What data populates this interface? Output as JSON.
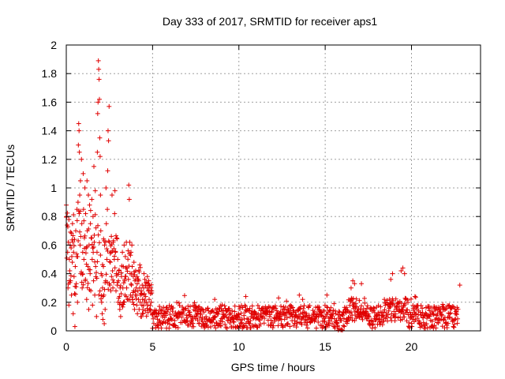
{
  "chart_data": {
    "type": "scatter",
    "title": "Day 333 of 2017, SRMTID for receiver aps1",
    "xlabel": "GPS time / hours",
    "ylabel": "SRMTID / TECUs",
    "xlim": [
      0,
      24
    ],
    "ylim": [
      0,
      2
    ],
    "xticks": [
      0,
      5,
      10,
      15,
      20
    ],
    "xtick_labels": [
      "0",
      "5",
      "10",
      "15",
      "20"
    ],
    "yticks": [
      0,
      0.2,
      0.4,
      0.6,
      0.8,
      1,
      1.2,
      1.4,
      1.6,
      1.8,
      2
    ],
    "ytick_labels": [
      "0",
      "0.2",
      "0.4",
      "0.6",
      "0.8",
      "1",
      "1.2",
      "1.4",
      "1.6",
      "1.8",
      "2"
    ],
    "grid": true,
    "marker": "plus",
    "color": "#e00000",
    "series": [
      {
        "name": "SRMTID",
        "points": [
          [
            0.0,
            0.88
          ],
          [
            0.02,
            0.8
          ],
          [
            0.05,
            0.74
          ],
          [
            0.08,
            0.55
          ],
          [
            0.1,
            0.3
          ],
          [
            0.12,
            0.62
          ],
          [
            0.15,
            0.18
          ],
          [
            0.18,
            0.5
          ],
          [
            0.2,
            0.42
          ],
          [
            0.22,
            0.6
          ],
          [
            0.25,
            0.35
          ],
          [
            0.28,
            0.58
          ],
          [
            0.3,
            0.25
          ],
          [
            0.32,
            0.52
          ],
          [
            0.35,
            0.48
          ],
          [
            0.38,
            0.62
          ],
          [
            0.4,
            0.12
          ],
          [
            0.42,
            0.55
          ],
          [
            0.45,
            0.38
          ],
          [
            0.48,
            0.64
          ],
          [
            0.5,
            0.03
          ],
          [
            0.52,
            0.45
          ],
          [
            0.55,
            0.7
          ],
          [
            0.58,
            0.33
          ],
          [
            0.6,
            0.52
          ],
          [
            0.62,
            0.85
          ],
          [
            0.65,
            0.2
          ],
          [
            0.68,
            0.9
          ],
          [
            0.7,
            1.3
          ],
          [
            0.72,
            1.45
          ],
          [
            0.74,
            1.4
          ],
          [
            0.76,
            1.25
          ],
          [
            0.78,
            0.95
          ],
          [
            0.8,
            0.6
          ],
          [
            0.82,
            1.05
          ],
          [
            0.85,
            0.4
          ],
          [
            0.88,
            1.2
          ],
          [
            0.9,
            0.75
          ],
          [
            0.92,
            0.3
          ],
          [
            0.95,
            0.55
          ],
          [
            0.98,
            1.1
          ],
          [
            1.0,
            0.85
          ],
          [
            1.02,
            0.5
          ],
          [
            1.05,
            0.65
          ],
          [
            1.08,
            1.0
          ],
          [
            1.1,
            0.35
          ],
          [
            1.12,
            0.82
          ],
          [
            1.15,
            0.58
          ],
          [
            1.18,
            0.22
          ],
          [
            1.2,
            1.05
          ],
          [
            1.22,
            0.7
          ],
          [
            1.25,
            0.45
          ],
          [
            1.28,
            0.95
          ],
          [
            1.3,
            0.15
          ],
          [
            1.32,
            0.6
          ],
          [
            1.35,
            0.88
          ],
          [
            1.38,
            0.4
          ],
          [
            1.4,
            0.75
          ],
          [
            1.42,
            0.28
          ],
          [
            1.45,
            0.65
          ],
          [
            1.48,
            0.92
          ],
          [
            1.5,
            0.5
          ],
          [
            1.52,
            0.18
          ],
          [
            1.55,
            0.8
          ],
          [
            1.58,
            0.35
          ],
          [
            1.6,
            1.15
          ],
          [
            1.62,
            0.62
          ],
          [
            1.65,
            0.25
          ],
          [
            1.68,
            0.98
          ],
          [
            1.7,
            0.45
          ],
          [
            1.72,
            0.72
          ],
          [
            1.75,
            0.1
          ],
          [
            1.78,
            0.55
          ],
          [
            1.8,
            1.25
          ],
          [
            1.82,
            1.52
          ],
          [
            1.84,
            1.6
          ],
          [
            1.86,
            1.89
          ],
          [
            1.88,
            1.83
          ],
          [
            1.9,
            1.76
          ],
          [
            1.92,
            1.62
          ],
          [
            1.94,
            1.35
          ],
          [
            1.96,
            1.22
          ],
          [
            1.98,
            0.95
          ],
          [
            2.0,
            0.7
          ],
          [
            2.02,
            0.4
          ],
          [
            2.05,
            0.2
          ],
          [
            2.08,
            0.12
          ],
          [
            2.1,
            0.3
          ],
          [
            2.12,
            0.08
          ],
          [
            2.15,
            0.45
          ],
          [
            2.18,
            0.25
          ],
          [
            2.2,
            0.05
          ],
          [
            2.22,
            0.6
          ],
          [
            2.25,
            0.15
          ],
          [
            2.28,
            0.35
          ],
          [
            2.3,
            1.0
          ],
          [
            2.32,
            0.75
          ],
          [
            2.35,
            0.5
          ],
          [
            2.38,
            0.85
          ],
          [
            2.4,
            1.12
          ],
          [
            2.42,
            1.4
          ],
          [
            2.45,
            1.33
          ],
          [
            2.48,
            1.57
          ],
          [
            2.5,
            0.62
          ],
          [
            2.52,
            0.32
          ],
          [
            2.55,
            0.48
          ],
          [
            2.58,
            0.28
          ],
          [
            2.6,
            0.55
          ],
          [
            2.62,
            0.38
          ],
          [
            2.65,
            0.95
          ],
          [
            2.68,
            0.42
          ],
          [
            2.7,
            0.3
          ],
          [
            2.72,
            0.62
          ],
          [
            2.75,
            0.34
          ],
          [
            2.78,
            0.5
          ],
          [
            2.8,
            0.82
          ],
          [
            2.82,
            0.98
          ],
          [
            2.85,
            0.55
          ],
          [
            2.88,
            0.28
          ],
          [
            2.9,
            0.4
          ],
          [
            2.92,
            0.65
          ],
          [
            2.95,
            0.32
          ],
          [
            2.98,
            0.5
          ],
          [
            3.0,
            0.2
          ],
          [
            3.02,
            0.35
          ],
          [
            3.05,
            0.42
          ],
          [
            3.08,
            0.24
          ],
          [
            3.1,
            0.15
          ],
          [
            3.12,
            0.3
          ],
          [
            3.15,
            0.1
          ],
          [
            3.18,
            0.26
          ],
          [
            3.2,
            0.38
          ],
          [
            3.22,
            0.18
          ],
          [
            3.25,
            0.55
          ],
          [
            3.28,
            0.3
          ],
          [
            3.3,
            0.45
          ],
          [
            3.32,
            0.2
          ],
          [
            3.35,
            0.6
          ],
          [
            3.38,
            0.35
          ],
          [
            3.4,
            0.25
          ],
          [
            3.42,
            0.52
          ],
          [
            3.45,
            0.38
          ],
          [
            3.48,
            0.62
          ],
          [
            3.5,
            0.3
          ],
          [
            3.52,
            0.44
          ],
          [
            3.55,
            0.22
          ],
          [
            3.58,
            0.56
          ],
          [
            3.6,
            0.36
          ],
          [
            3.62,
            1.02
          ],
          [
            3.65,
            0.92
          ],
          [
            3.68,
            0.62
          ],
          [
            3.7,
            0.4
          ],
          [
            3.72,
            0.25
          ],
          [
            3.75,
            0.55
          ],
          [
            3.78,
            0.32
          ],
          [
            3.8,
            0.6
          ],
          [
            3.82,
            0.45
          ],
          [
            3.85,
            0.2
          ],
          [
            3.88,
            0.38
          ],
          [
            3.9,
            0.28
          ],
          [
            3.92,
            0.48
          ],
          [
            3.95,
            0.15
          ],
          [
            3.98,
            0.35
          ],
          [
            4.0,
            0.25
          ],
          [
            4.02,
            0.42
          ],
          [
            4.05,
            0.3
          ],
          [
            4.08,
            0.18
          ],
          [
            4.1,
            0.38
          ],
          [
            4.12,
            0.12
          ],
          [
            4.15,
            0.28
          ],
          [
            4.18,
            0.22
          ],
          [
            4.2,
            0.35
          ],
          [
            4.22,
            0.15
          ],
          [
            4.25,
            0.3
          ],
          [
            4.28,
            0.2
          ],
          [
            4.3,
            0.25
          ],
          [
            4.32,
            0.1
          ],
          [
            4.35,
            0.28
          ],
          [
            4.38,
            0.18
          ],
          [
            4.4,
            0.32
          ],
          [
            4.42,
            0.22
          ],
          [
            4.45,
            0.12
          ],
          [
            4.48,
            0.3
          ],
          [
            4.5,
            0.4
          ],
          [
            4.52,
            0.26
          ],
          [
            4.55,
            0.36
          ],
          [
            4.58,
            0.14
          ],
          [
            4.6,
            0.24
          ],
          [
            4.62,
            0.34
          ],
          [
            4.65,
            0.2
          ],
          [
            4.68,
            0.3
          ],
          [
            4.7,
            0.38
          ],
          [
            4.72,
            0.18
          ],
          [
            4.75,
            0.28
          ],
          [
            4.78,
            0.35
          ],
          [
            4.8,
            0.22
          ],
          [
            4.82,
            0.32
          ],
          [
            4.85,
            0.15
          ],
          [
            4.88,
            0.26
          ],
          [
            4.9,
            0.3
          ],
          [
            4.92,
            0.2
          ],
          [
            4.95,
            0.28
          ],
          [
            4.98,
            0.12
          ],
          [
            16.6,
            0.35
          ],
          [
            16.7,
            0.33
          ],
          [
            16.5,
            0.3
          ],
          [
            19.4,
            0.42
          ],
          [
            19.5,
            0.44
          ],
          [
            18.9,
            0.4
          ],
          [
            19.6,
            0.4
          ],
          [
            18.8,
            0.36
          ],
          [
            17.1,
            0.33
          ],
          [
            20.2,
            0.24
          ],
          [
            22.8,
            0.32
          ],
          [
            10.4,
            0.24
          ],
          [
            13.5,
            0.25
          ],
          [
            15.1,
            0.25
          ],
          [
            8.6,
            0.22
          ],
          [
            12.3,
            0.23
          ]
        ]
      }
    ]
  }
}
